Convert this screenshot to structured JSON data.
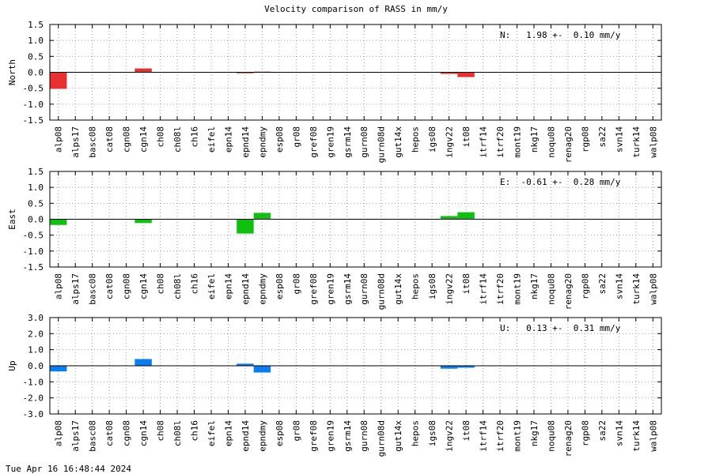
{
  "title": "Velocity comparison of RASS in mm/y",
  "footer": "Tue Apr 16 16:48:44 2024",
  "chart_data": [
    {
      "type": "bar",
      "ylabel": "North",
      "annotation": "N:   1.98 +-  0.10 mm/y",
      "color": "#e83030",
      "ylim": [
        -1.5,
        1.5
      ],
      "yticks": [
        "1.5",
        "1.0",
        "0.5",
        "0.0",
        "-0.5",
        "-1.0",
        "-1.5"
      ],
      "grid": true,
      "categories": [
        "alp08",
        "alps17",
        "basc08",
        "cat08",
        "cgn08",
        "cgn14",
        "ch08",
        "ch08l",
        "ch16",
        "eifel",
        "epn14",
        "epnd14",
        "epndmy",
        "esp08",
        "gr08",
        "gref08",
        "gren19",
        "gsrm14",
        "gurn08",
        "gurn08d",
        "gut14x",
        "hepos",
        "igs08",
        "ingv22",
        "it08",
        "itrf14",
        "itrf20",
        "mont19",
        "nkg17",
        "noqu08",
        "renag20",
        "rgp08",
        "sa22",
        "svn14",
        "turk14",
        "walp08"
      ],
      "values": [
        -0.52,
        0,
        0,
        0,
        0,
        0.12,
        0,
        0,
        0,
        0,
        0,
        -0.03,
        0.02,
        0,
        0,
        0,
        0,
        0,
        0,
        0,
        0,
        0,
        0,
        -0.05,
        -0.15,
        0,
        0,
        0,
        0,
        0,
        0,
        0,
        0,
        0,
        0,
        0
      ]
    },
    {
      "type": "bar",
      "ylabel": "East",
      "annotation": "E:  -0.61 +-  0.28 mm/y",
      "color": "#10c010",
      "ylim": [
        -1.5,
        1.5
      ],
      "yticks": [
        "1.5",
        "1.0",
        "0.5",
        "0.0",
        "-0.5",
        "-1.0",
        "-1.5"
      ],
      "grid": true,
      "categories": [
        "alp08",
        "alps17",
        "basc08",
        "cat08",
        "cgn08",
        "cgn14",
        "ch08",
        "ch08l",
        "ch16",
        "eifel",
        "epn14",
        "epnd14",
        "epndmy",
        "esp08",
        "gr08",
        "gref08",
        "gren19",
        "gsrm14",
        "gurn08",
        "gurn08d",
        "gut14x",
        "hepos",
        "igs08",
        "ingv22",
        "it08",
        "itrf14",
        "itrf20",
        "mont19",
        "nkg17",
        "noqu08",
        "renag20",
        "rgp08",
        "sa22",
        "svn14",
        "turk14",
        "walp08"
      ],
      "values": [
        -0.18,
        0,
        0,
        0,
        0,
        -0.12,
        0,
        0,
        0,
        0,
        0,
        -0.45,
        0.2,
        0,
        0,
        0,
        0,
        0,
        0,
        0,
        0,
        0,
        0,
        0.1,
        0.22,
        0,
        0,
        0,
        0,
        0,
        0,
        0,
        0,
        0,
        0,
        0
      ]
    },
    {
      "type": "bar",
      "ylabel": "Up",
      "annotation": "U:   0.13 +-  0.31 mm/y",
      "color": "#0a7ef0",
      "ylim": [
        -3.0,
        3.0
      ],
      "yticks": [
        "3.0",
        "2.0",
        "1.0",
        "0.0",
        "-1.0",
        "-2.0",
        "-3.0"
      ],
      "grid": true,
      "categories": [
        "alp08",
        "alps17",
        "basc08",
        "cat08",
        "cgn08",
        "cgn14",
        "ch08",
        "ch08l",
        "ch16",
        "eifel",
        "epn14",
        "epnd14",
        "epndmy",
        "esp08",
        "gr08",
        "gref08",
        "gren19",
        "gsrm14",
        "gurn08",
        "gurn08d",
        "gut14x",
        "hepos",
        "igs08",
        "ingv22",
        "it08",
        "itrf14",
        "itrf20",
        "mont19",
        "nkg17",
        "noqu08",
        "renag20",
        "rgp08",
        "sa22",
        "svn14",
        "turk14",
        "walp08"
      ],
      "values": [
        -0.35,
        0,
        0,
        0,
        0,
        0.42,
        0,
        0,
        0,
        0,
        0,
        0.13,
        -0.42,
        0,
        0,
        0,
        0,
        0,
        0,
        0,
        0,
        0,
        0,
        -0.18,
        -0.12,
        0,
        0,
        0,
        0,
        0,
        0,
        0,
        0,
        0,
        0,
        0
      ]
    }
  ]
}
